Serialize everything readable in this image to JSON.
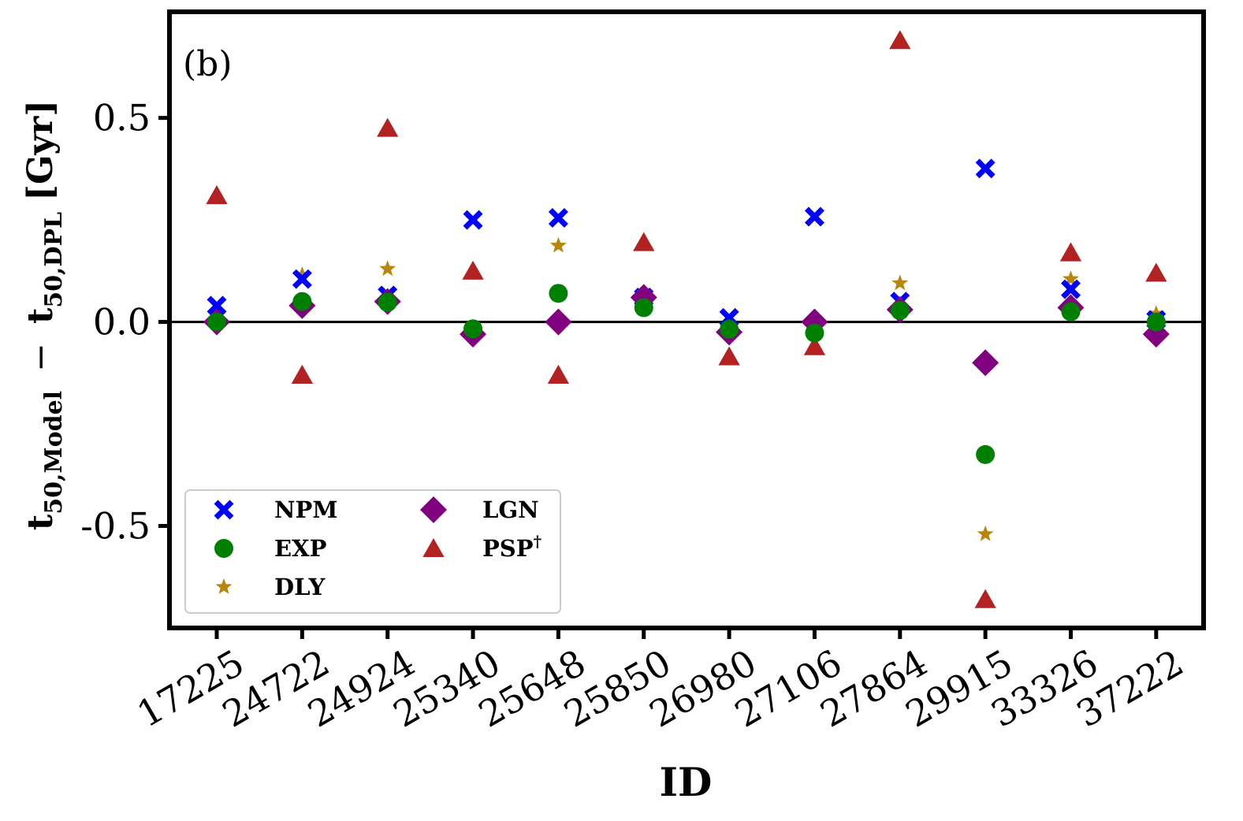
{
  "chart_data": {
    "type": "scatter",
    "panel_label": "(b)",
    "xlabel": "ID",
    "ylabel": {
      "left_term_base": "t",
      "left_term_sub": "50,Model",
      "operator": "−",
      "right_term_base": "t",
      "right_term_sub": "50,DPL",
      "unit": "[Gyr]"
    },
    "categories": [
      "17225",
      "24722",
      "24924",
      "25340",
      "25648",
      "25850",
      "26980",
      "27106",
      "27864",
      "29915",
      "33326",
      "37222"
    ],
    "ylim": [
      -0.75,
      0.76
    ],
    "yticks": [
      {
        "value": 0.5,
        "label": "0.5"
      },
      {
        "value": 0.0,
        "label": "0.0"
      },
      {
        "value": -0.5,
        "label": "-0.5"
      }
    ],
    "reference_line": 0.0,
    "series": [
      {
        "name": "NPM",
        "marker": "x",
        "color": "#0000ff",
        "values": [
          0.04,
          0.105,
          0.065,
          0.25,
          0.255,
          0.06,
          0.01,
          0.258,
          0.05,
          0.376,
          0.08,
          0.005
        ]
      },
      {
        "name": "EXP",
        "marker": "circle",
        "color": "#008000",
        "values": [
          0.0,
          0.05,
          0.048,
          -0.017,
          0.07,
          0.035,
          -0.018,
          -0.027,
          0.028,
          -0.325,
          0.025,
          0.0
        ]
      },
      {
        "name": "DLY",
        "marker": "star",
        "color": "#b8860b",
        "values": [
          0.0,
          0.115,
          0.13,
          -0.02,
          0.187,
          0.06,
          -0.015,
          0.0,
          0.095,
          -0.52,
          0.105,
          0.02
        ]
      },
      {
        "name": "LGN",
        "marker": "diamond",
        "color": "#800080",
        "values": [
          0.0,
          0.04,
          0.05,
          -0.03,
          0.0,
          0.06,
          -0.025,
          0.0,
          0.03,
          -0.1,
          0.035,
          -0.03
        ]
      },
      {
        "name": "PSP",
        "name_suffix": "†",
        "marker": "triangle",
        "color": "#b22222",
        "values": [
          0.31,
          -0.13,
          0.475,
          0.125,
          -0.13,
          0.195,
          -0.085,
          -0.06,
          0.69,
          -0.68,
          0.17,
          0.12
        ]
      }
    ],
    "legend": {
      "position": "lower-left",
      "columns": 2
    }
  }
}
